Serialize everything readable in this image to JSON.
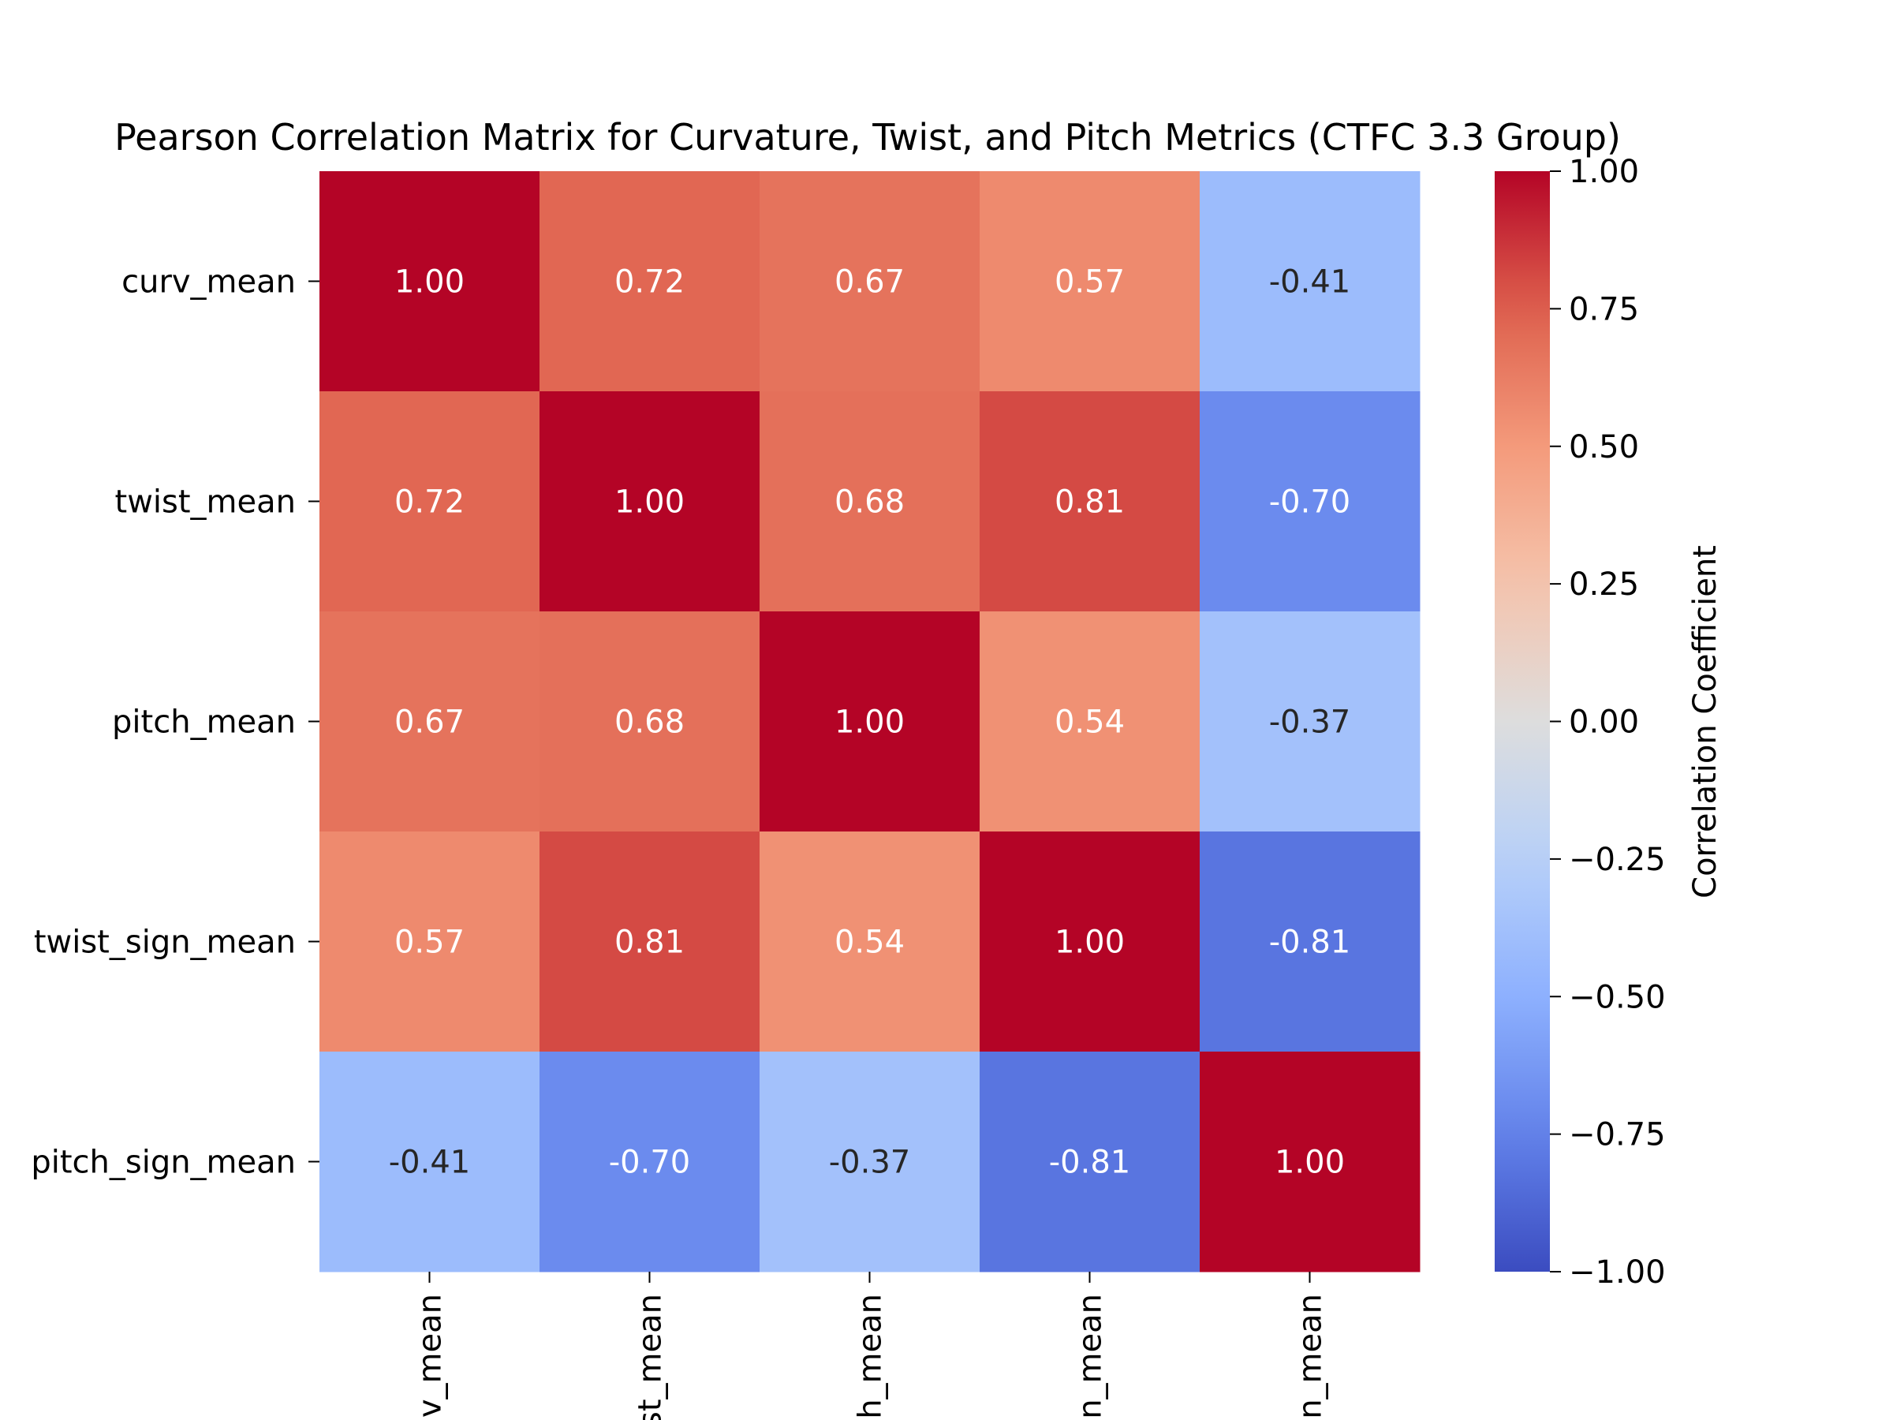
{
  "chart_data": {
    "type": "heatmap",
    "title": "Pearson Correlation Matrix for Curvature, Twist, and Pitch Metrics (CTFC 3.3 Group)",
    "row_labels": [
      "curv_mean",
      "twist_mean",
      "pitch_mean",
      "twist_sign_mean",
      "pitch_sign_mean"
    ],
    "col_labels": [
      "curv_mean",
      "twist_mean",
      "pitch_mean",
      "twist_sign_mean",
      "pitch_sign_mean"
    ],
    "col_labels_visible": [
      "v_mean",
      "st_mean",
      "h_mean",
      "n_mean",
      "n_mean"
    ],
    "values": [
      [
        1.0,
        0.72,
        0.67,
        0.57,
        -0.41
      ],
      [
        0.72,
        1.0,
        0.68,
        0.81,
        -0.7
      ],
      [
        0.67,
        0.68,
        1.0,
        0.54,
        -0.37
      ],
      [
        0.57,
        0.81,
        0.54,
        1.0,
        -0.81
      ],
      [
        -0.41,
        -0.7,
        -0.37,
        -0.81,
        1.0
      ]
    ],
    "value_labels": [
      [
        "1.00",
        "0.72",
        "0.67",
        "0.57",
        "-0.41"
      ],
      [
        "0.72",
        "1.00",
        "0.68",
        "0.81",
        "-0.70"
      ],
      [
        "0.67",
        "0.68",
        "1.00",
        "0.54",
        "-0.37"
      ],
      [
        "0.57",
        "0.81",
        "0.54",
        "1.00",
        "-0.81"
      ],
      [
        "-0.41",
        "-0.70",
        "-0.37",
        "-0.81",
        "1.00"
      ]
    ],
    "colormap": "coolwarm",
    "vmin": -1.0,
    "vmax": 1.0,
    "colorbar": {
      "label": "Correlation Coefficient",
      "ticks": [
        1.0,
        0.75,
        0.5,
        0.25,
        0.0,
        -0.25,
        -0.5,
        -0.75,
        -1.0
      ],
      "tick_labels": [
        "1.00",
        "0.75",
        "0.50",
        "0.25",
        "0.00",
        "−0.25",
        "−0.50",
        "−0.75",
        "−1.00"
      ]
    },
    "colors": {
      "low": "#3b4cc0",
      "mid": "#dddddd",
      "high": "#b40426"
    }
  }
}
